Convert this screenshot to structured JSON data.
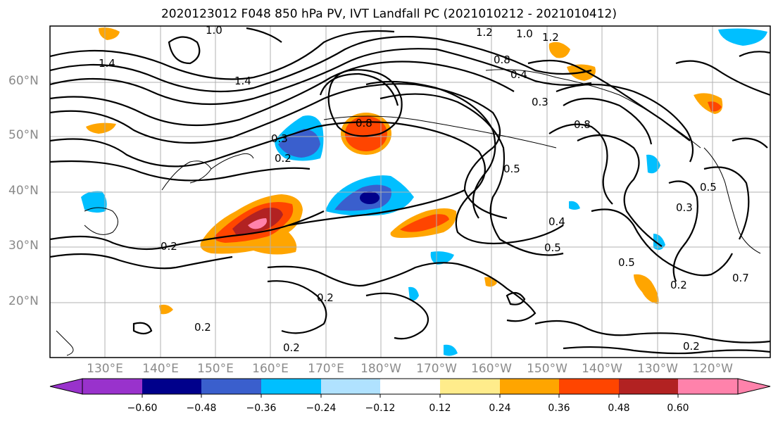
{
  "title": "2020123012 F048 850 hPa PV, IVT Landfall PC (2021010212 - 2021010412)",
  "latitude_labels": [
    "60°N",
    "50°N",
    "40°N",
    "30°N",
    "20°N"
  ],
  "longitude_labels": [
    "130°E",
    "140°E",
    "150°E",
    "160°E",
    "170°E",
    "180°W",
    "170°W",
    "160°W",
    "150°W",
    "140°W",
    "130°W",
    "120°W"
  ],
  "colorbar": {
    "ticks": [
      "−0.60",
      "−0.48",
      "−0.36",
      "−0.24",
      "−0.12",
      "0.12",
      "0.24",
      "0.36",
      "0.48",
      "0.60"
    ],
    "colors": [
      "#9932CC",
      "#00008B",
      "#3A5FCD",
      "#00BFFF",
      "#B0E2FF",
      "#FFFFFF",
      "#FFEC8B",
      "#FFA500",
      "#FF4500",
      "#B22222",
      "#FF82AB"
    ]
  },
  "contour_labels": [
    "1.0",
    "1.2",
    "1.0",
    "1.2",
    "1.4",
    "0.8",
    "1.4",
    "0.8",
    "0.4",
    "0.3",
    "0.8",
    "0.3",
    "0.2",
    "0.5",
    "0.3",
    "0.2",
    "0.4",
    "0.5",
    "0.2",
    "0.2",
    "0.2",
    "0.2",
    "0.5",
    "0.2",
    "0.5",
    "0.7"
  ]
}
